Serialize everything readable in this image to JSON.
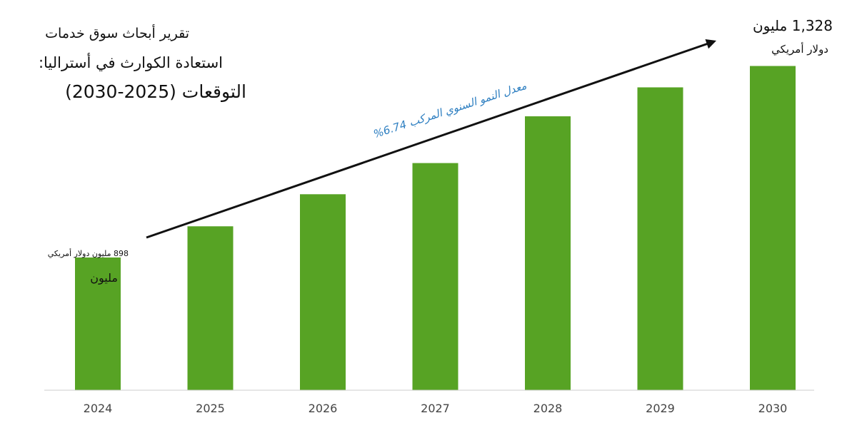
{
  "title": {
    "line1": "تقرير أبحاث سوق خدمات",
    "line2": "استعادة الكوارث في أستراليا:",
    "line3": "التوقعات (2025-2030)"
  },
  "annotations": {
    "start_value": "898 مليون دولار أمريكي",
    "start_unit": "مليون",
    "end_value": "1,328 مليون",
    "end_unit": "دولار أمريكي",
    "cagr": "معدل النمو السنوي المركب 6.74%"
  },
  "colors": {
    "bar": "#57a324",
    "arrow": "#111111",
    "cagr_text": "#2e7fc1",
    "axis": "#cccccc"
  },
  "chart_data": {
    "type": "bar",
    "categories": [
      "2024",
      "2025",
      "2026",
      "2027",
      "2028",
      "2029",
      "2030"
    ],
    "values": [
      898,
      968,
      1040,
      1110,
      1215,
      1280,
      1328
    ],
    "ylim": [
      600,
      1340
    ],
    "grid": false,
    "legend": "none"
  }
}
